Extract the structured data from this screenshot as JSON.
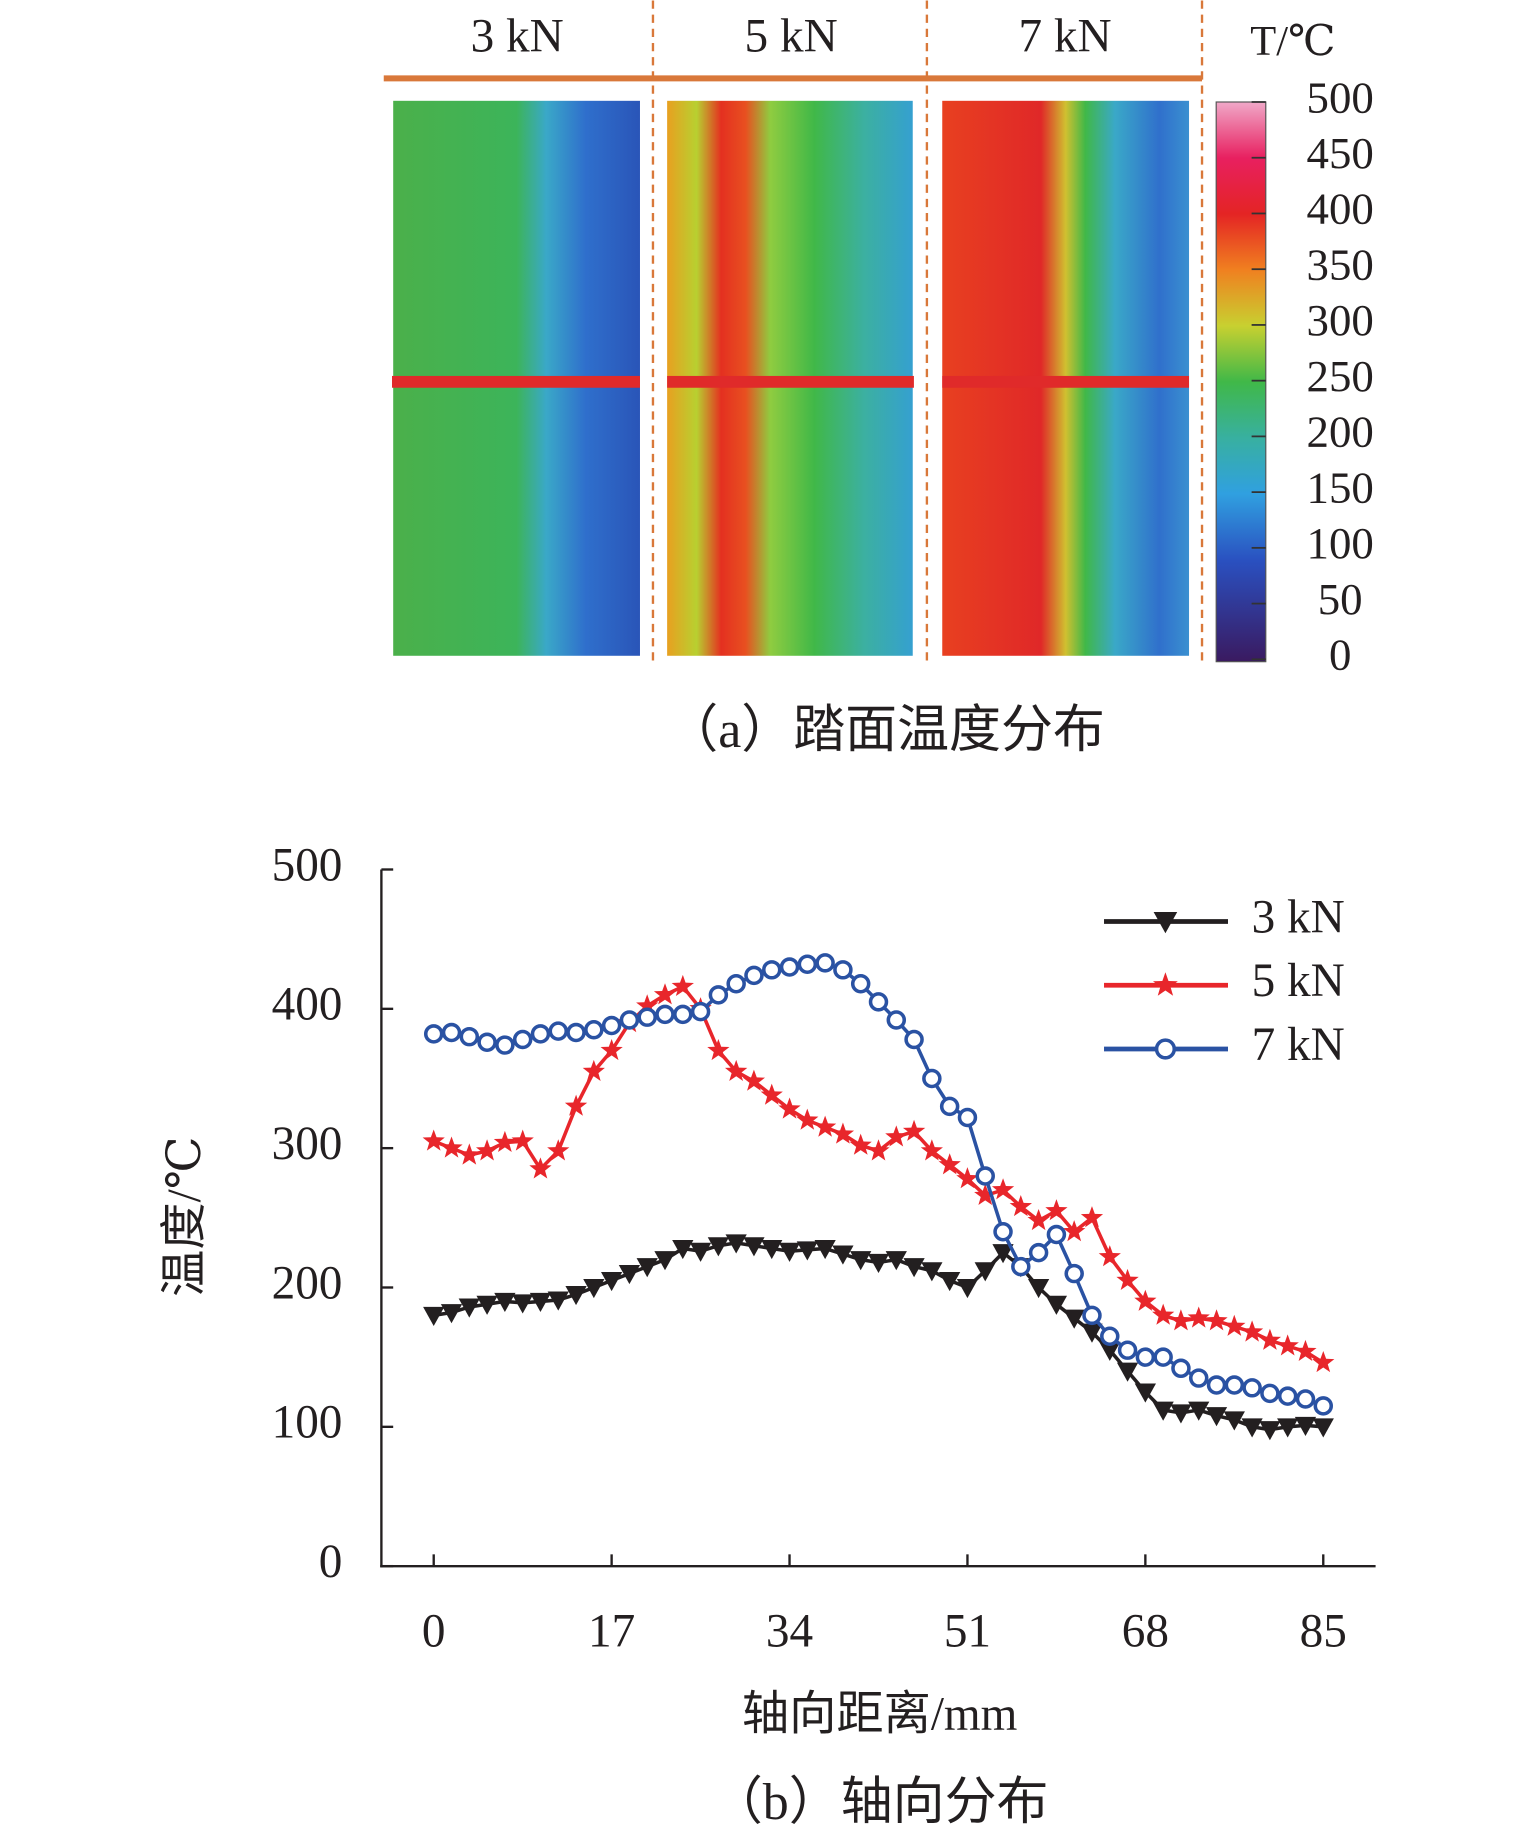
{
  "chart_data": [
    {
      "type": "heatmap",
      "panels": [
        "3 kN",
        "5 kN",
        "7 kN"
      ],
      "colorbar": {
        "label": "T/℃",
        "lim": [
          0,
          500
        ],
        "ticks": [
          0,
          50,
          100,
          150,
          200,
          250,
          300,
          350,
          400,
          450,
          500
        ]
      },
      "caption": "（a）踏面温度分布"
    },
    {
      "type": "line",
      "xlabel": "轴向距离/mm",
      "ylabel": "温度/℃",
      "caption": "（b）轴向分布",
      "xlim": [
        -5,
        90
      ],
      "ylim": [
        0,
        500
      ],
      "xticks": [
        0,
        17,
        34,
        51,
        68,
        85
      ],
      "yticks": [
        0,
        100,
        200,
        300,
        400,
        500
      ],
      "legend": "upper right",
      "x": [
        0,
        1.7,
        3.4,
        5.1,
        6.8,
        8.5,
        10.2,
        11.9,
        13.6,
        15.3,
        17,
        18.7,
        20.4,
        22.1,
        23.8,
        25.5,
        27.2,
        28.9,
        30.6,
        32.3,
        34,
        35.7,
        37.4,
        39.1,
        40.8,
        42.5,
        44.2,
        45.9,
        47.6,
        49.3,
        51,
        52.7,
        54.4,
        56.1,
        57.8,
        59.5,
        61.2,
        62.9,
        64.6,
        66.3,
        68,
        69.7,
        71.4,
        73.1,
        74.8,
        76.5,
        78.2,
        79.9,
        81.6,
        83.3,
        85
      ],
      "series": [
        {
          "name": "3 kN",
          "color": "#231f20",
          "marker": "triangle-down",
          "values": [
            180,
            182,
            186,
            188,
            190,
            189,
            190,
            191,
            195,
            200,
            205,
            210,
            215,
            220,
            228,
            226,
            230,
            232,
            230,
            228,
            226,
            227,
            228,
            224,
            220,
            218,
            220,
            215,
            212,
            205,
            200,
            212,
            225,
            215,
            200,
            188,
            178,
            168,
            155,
            140,
            125,
            112,
            110,
            112,
            108,
            105,
            100,
            98,
            100,
            101,
            100
          ]
        },
        {
          "name": "5 kN",
          "color": "#e8262b",
          "marker": "star",
          "values": [
            305,
            300,
            295,
            298,
            304,
            305,
            285,
            298,
            330,
            355,
            370,
            390,
            402,
            410,
            416,
            400,
            370,
            355,
            348,
            338,
            328,
            320,
            315,
            310,
            302,
            298,
            308,
            312,
            298,
            288,
            278,
            266,
            270,
            258,
            248,
            255,
            240,
            250,
            222,
            205,
            190,
            180,
            176,
            178,
            176,
            172,
            168,
            162,
            158,
            154,
            146
          ]
        },
        {
          "name": "7 kN",
          "color": "#2a52a3",
          "marker": "circle",
          "values": [
            382,
            383,
            380,
            376,
            374,
            378,
            382,
            384,
            383,
            385,
            388,
            392,
            394,
            396,
            396,
            398,
            410,
            418,
            424,
            428,
            430,
            432,
            433,
            428,
            418,
            405,
            392,
            378,
            350,
            330,
            322,
            280,
            240,
            215,
            225,
            238,
            210,
            180,
            165,
            155,
            150,
            150,
            142,
            135,
            130,
            130,
            128,
            124,
            122,
            120,
            115
          ]
        }
      ]
    }
  ]
}
